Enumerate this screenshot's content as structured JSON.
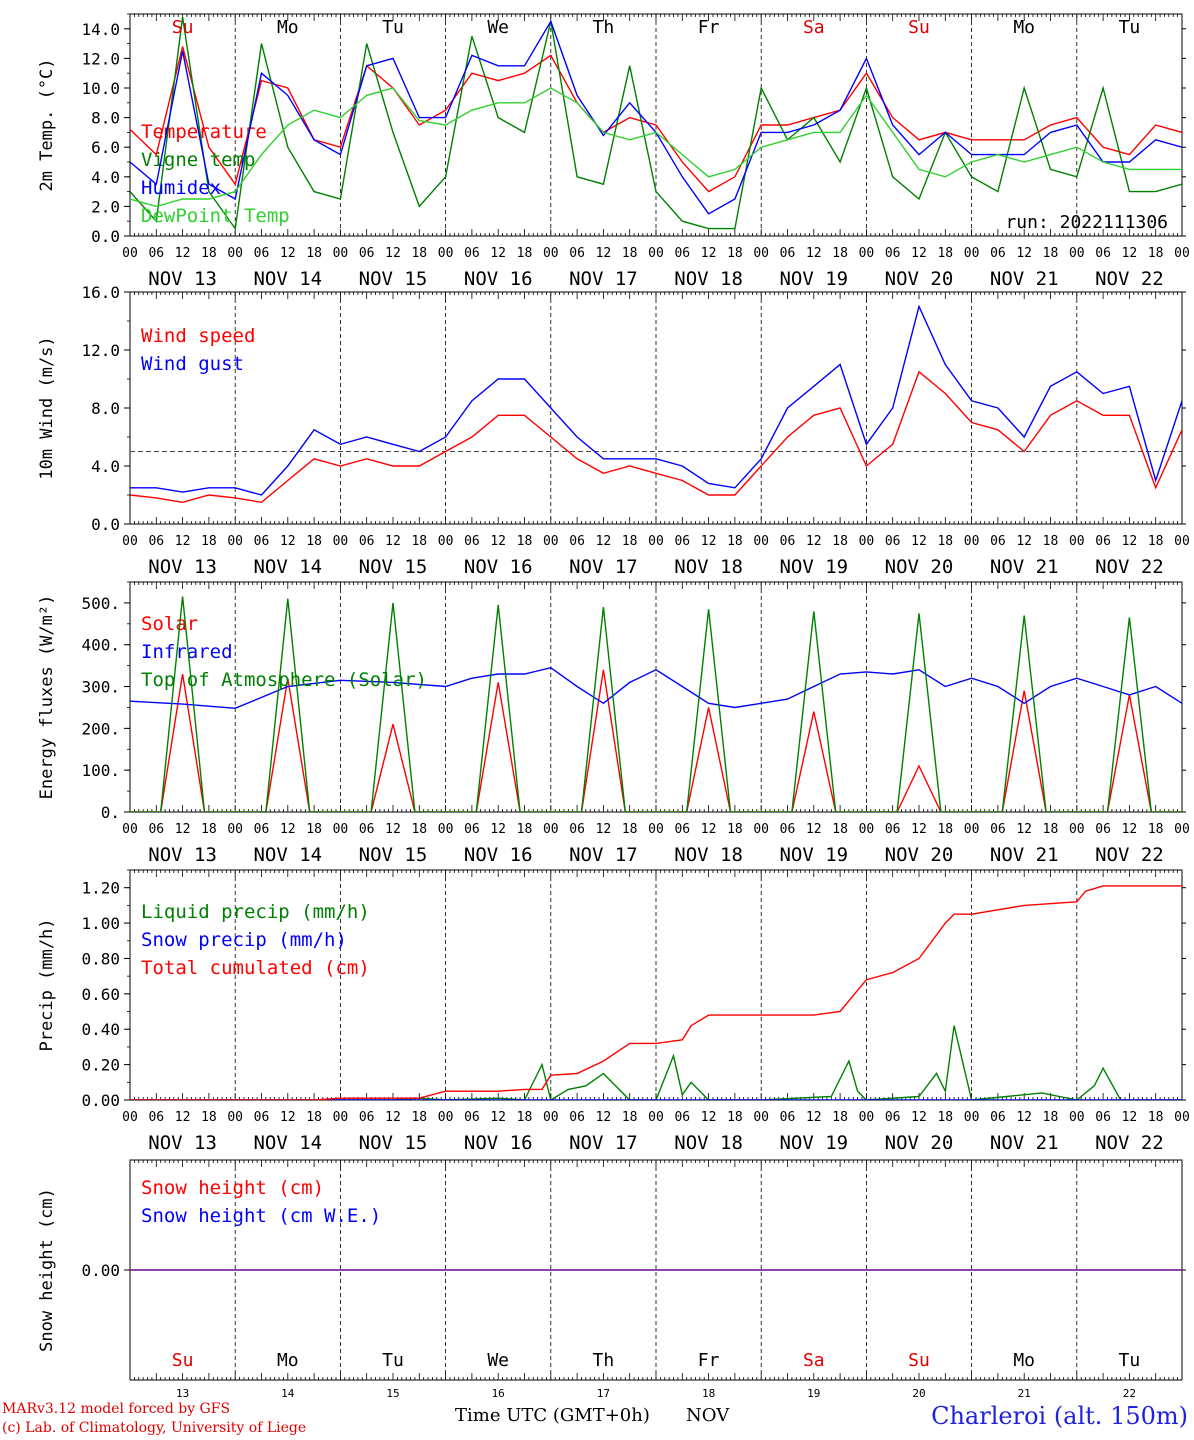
{
  "run_label": "run: 2022111306",
  "station": "Charleroi (alt. 150m)",
  "credits": [
    "MARv3.12 model forced by GFS",
    "(c) Lab. of Climatology, University of Liege"
  ],
  "x_title": "Time UTC (GMT+0h)",
  "x_unit": "NOV",
  "weekdays": [
    "Su",
    "Mo",
    "Tu",
    "We",
    "Th",
    "Fr",
    "Sa",
    "Su",
    "Mo",
    "Tu"
  ],
  "weekend_color": "#e00000",
  "date_labels": [
    "NOV 13",
    "NOV 14",
    "NOV 15",
    "NOV 16",
    "NOV 17",
    "NOV 18",
    "NOV 19",
    "NOV 20",
    "NOV 21",
    "NOV 22"
  ],
  "day_numbers": [
    "13",
    "14",
    "15",
    "16",
    "17",
    "18",
    "19",
    "20",
    "21",
    "22"
  ],
  "hour_ticks": [
    "00",
    "06",
    "12",
    "18"
  ],
  "chart_data": [
    {
      "type": "line",
      "ylabel": "2m Temp. (°C)",
      "x_unit": "hours since 2022-11-13 00 UTC",
      "ylim": [
        0,
        15
      ],
      "yticks": [
        "0.0",
        "2.0",
        "4.0",
        "6.0",
        "8.0",
        "10.0",
        "12.0",
        "14.0"
      ],
      "ytick_values": [
        0,
        2,
        4,
        6,
        8,
        10,
        12,
        14
      ],
      "series": [
        {
          "name": "Temperature",
          "color": "#ff0000",
          "x": [
            0,
            6,
            12,
            18,
            24,
            30,
            36,
            42,
            48,
            54,
            60,
            66,
            72,
            78,
            84,
            90,
            96,
            102,
            108,
            114,
            120,
            126,
            132,
            138,
            144,
            150,
            156,
            162,
            168,
            174,
            180,
            186,
            192,
            198,
            204,
            210,
            216,
            222,
            228,
            234,
            240
          ],
          "y": [
            7.2,
            5.5,
            12.8,
            6.0,
            3.5,
            10.5,
            10.0,
            6.5,
            6.0,
            11.5,
            10.0,
            7.5,
            8.5,
            11.0,
            10.5,
            11.0,
            12.2,
            9.0,
            7.0,
            8.0,
            7.5,
            5.0,
            3.0,
            4.0,
            7.5,
            7.5,
            8.0,
            8.5,
            11.0,
            8.0,
            6.5,
            7.0,
            6.5,
            6.5,
            6.5,
            7.5,
            8.0,
            6.0,
            5.5,
            7.5,
            7.0
          ]
        },
        {
          "name": "Vigne temp",
          "color": "#008000",
          "x": [
            0,
            6,
            12,
            18,
            24,
            30,
            36,
            42,
            48,
            54,
            60,
            66,
            72,
            78,
            84,
            90,
            96,
            102,
            108,
            114,
            120,
            126,
            132,
            138,
            144,
            150,
            156,
            162,
            168,
            174,
            180,
            186,
            192,
            198,
            204,
            210,
            216,
            222,
            228,
            234,
            240
          ],
          "y": [
            3.0,
            1.0,
            14.8,
            3.0,
            0.5,
            13.0,
            6.0,
            3.0,
            2.5,
            13.0,
            7.0,
            2.0,
            4.0,
            13.5,
            8.0,
            7.0,
            14.5,
            4.0,
            3.5,
            11.5,
            3.0,
            1.0,
            0.5,
            0.5,
            10.0,
            6.5,
            8.0,
            5.0,
            10.0,
            4.0,
            2.5,
            7.0,
            4.0,
            3.0,
            10.0,
            4.5,
            4.0,
            10.0,
            3.0,
            3.0,
            3.5
          ]
        },
        {
          "name": "Humidex",
          "color": "#0000ff",
          "x": [
            0,
            6,
            12,
            18,
            24,
            30,
            36,
            42,
            48,
            54,
            60,
            66,
            72,
            78,
            84,
            90,
            96,
            102,
            108,
            114,
            120,
            126,
            132,
            138,
            144,
            150,
            156,
            162,
            168,
            174,
            180,
            186,
            192,
            198,
            204,
            210,
            216,
            222,
            228,
            234,
            240
          ],
          "y": [
            5.0,
            3.5,
            12.5,
            3.5,
            2.5,
            11.0,
            9.5,
            6.5,
            5.5,
            11.5,
            12.0,
            8.0,
            8.0,
            12.2,
            11.5,
            11.5,
            14.5,
            9.5,
            6.8,
            9.0,
            7.0,
            4.0,
            1.5,
            2.5,
            7.0,
            7.0,
            7.5,
            8.5,
            12.0,
            7.5,
            5.5,
            7.0,
            5.5,
            5.5,
            5.5,
            7.0,
            7.5,
            5.0,
            5.0,
            6.5,
            6.0
          ]
        },
        {
          "name": "DewPoint Temp",
          "color": "#30d030",
          "x": [
            0,
            6,
            12,
            18,
            24,
            30,
            36,
            42,
            48,
            54,
            60,
            66,
            72,
            78,
            84,
            90,
            96,
            102,
            108,
            114,
            120,
            126,
            132,
            138,
            144,
            150,
            156,
            162,
            168,
            174,
            180,
            186,
            192,
            198,
            204,
            210,
            216,
            222,
            228,
            234,
            240
          ],
          "y": [
            2.5,
            2.0,
            2.5,
            2.5,
            3.0,
            5.5,
            7.5,
            8.5,
            8.0,
            9.5,
            10.0,
            7.8,
            7.5,
            8.5,
            9.0,
            9.0,
            10.0,
            9.0,
            7.0,
            6.5,
            7.0,
            5.5,
            4.0,
            4.5,
            6.0,
            6.5,
            7.0,
            7.0,
            9.5,
            7.0,
            4.5,
            4.0,
            5.0,
            5.5,
            5.0,
            5.5,
            6.0,
            5.0,
            4.5,
            4.5,
            4.5
          ]
        }
      ]
    },
    {
      "type": "line",
      "ylabel": "10m Wind (m/s)",
      "x_unit": "hours since 2022-11-13 00 UTC",
      "ylim": [
        0,
        16
      ],
      "yticks": [
        "0.0",
        "4.0",
        "8.0",
        "12.0",
        "16.0"
      ],
      "ytick_values": [
        0,
        4,
        8,
        12,
        16
      ],
      "reference_line": 5.0,
      "series": [
        {
          "name": "Wind speed",
          "color": "#ff0000",
          "x": [
            0,
            6,
            12,
            18,
            24,
            30,
            36,
            42,
            48,
            54,
            60,
            66,
            72,
            78,
            84,
            90,
            96,
            102,
            108,
            114,
            120,
            126,
            132,
            138,
            144,
            150,
            156,
            162,
            168,
            174,
            180,
            186,
            192,
            198,
            204,
            210,
            216,
            222,
            228,
            234,
            240
          ],
          "y": [
            2.0,
            1.8,
            1.5,
            2.0,
            1.8,
            1.5,
            3.0,
            4.5,
            4.0,
            4.5,
            4.0,
            4.0,
            5.0,
            6.0,
            7.5,
            7.5,
            6.0,
            4.5,
            3.5,
            4.0,
            3.5,
            3.0,
            2.0,
            2.0,
            4.0,
            6.0,
            7.5,
            8.0,
            4.0,
            5.5,
            10.5,
            9.0,
            7.0,
            6.5,
            5.0,
            7.5,
            8.5,
            7.5,
            7.5,
            2.5,
            6.5
          ]
        },
        {
          "name": "Wind gust",
          "color": "#0000ff",
          "x": [
            0,
            6,
            12,
            18,
            24,
            30,
            36,
            42,
            48,
            54,
            60,
            66,
            72,
            78,
            84,
            90,
            96,
            102,
            108,
            114,
            120,
            126,
            132,
            138,
            144,
            150,
            156,
            162,
            168,
            174,
            180,
            186,
            192,
            198,
            204,
            210,
            216,
            222,
            228,
            234,
            240
          ],
          "y": [
            2.5,
            2.5,
            2.2,
            2.5,
            2.5,
            2.0,
            4.0,
            6.5,
            5.5,
            6.0,
            5.5,
            5.0,
            6.0,
            8.5,
            10.0,
            10.0,
            8.0,
            6.0,
            4.5,
            4.5,
            4.5,
            4.0,
            2.8,
            2.5,
            4.5,
            8.0,
            9.5,
            11.0,
            5.5,
            8.0,
            15.0,
            11.0,
            8.5,
            8.0,
            6.0,
            9.5,
            10.5,
            9.0,
            9.5,
            3.0,
            8.5
          ]
        }
      ]
    },
    {
      "type": "line",
      "ylabel": "Energy fluxes (W/m²)",
      "x_unit": "hours since 2022-11-13 00 UTC",
      "ylim": [
        0,
        550
      ],
      "yticks": [
        "0.",
        "100.",
        "200.",
        "300.",
        "400.",
        "500."
      ],
      "ytick_values": [
        0,
        100,
        200,
        300,
        400,
        500
      ],
      "series": [
        {
          "name": "Solar",
          "color": "#ff0000",
          "x": [
            0,
            7,
            12,
            17,
            24,
            31,
            36,
            41,
            48,
            55,
            60,
            65,
            72,
            79,
            84,
            89,
            96,
            103,
            108,
            113,
            120,
            127,
            132,
            137,
            144,
            151,
            156,
            161,
            168,
            175,
            180,
            185,
            192,
            199,
            204,
            209,
            216,
            223,
            228,
            233,
            240
          ],
          "y": [
            0,
            0,
            330,
            0,
            0,
            0,
            320,
            0,
            0,
            0,
            210,
            0,
            0,
            0,
            310,
            0,
            0,
            0,
            340,
            0,
            0,
            0,
            250,
            0,
            0,
            0,
            240,
            0,
            0,
            0,
            110,
            0,
            0,
            0,
            290,
            0,
            0,
            0,
            280,
            0,
            0
          ]
        },
        {
          "name": "Infrared",
          "color": "#0000ff",
          "x": [
            0,
            12,
            24,
            36,
            48,
            60,
            72,
            78,
            84,
            90,
            96,
            102,
            108,
            114,
            120,
            126,
            132,
            138,
            144,
            150,
            156,
            162,
            168,
            174,
            180,
            186,
            192,
            198,
            204,
            210,
            216,
            222,
            228,
            234,
            240
          ],
          "y": [
            265,
            258,
            248,
            300,
            315,
            310,
            300,
            320,
            330,
            330,
            345,
            300,
            260,
            310,
            340,
            300,
            260,
            250,
            260,
            270,
            300,
            330,
            335,
            330,
            340,
            300,
            320,
            300,
            260,
            300,
            320,
            300,
            280,
            300,
            260
          ]
        },
        {
          "name": "Top of Atmosphere (Solar)",
          "color": "#008000",
          "x": [
            0,
            7,
            12,
            17,
            24,
            31,
            36,
            41,
            48,
            55,
            60,
            65,
            72,
            79,
            84,
            89,
            96,
            103,
            108,
            113,
            120,
            127,
            132,
            137,
            144,
            151,
            156,
            161,
            168,
            175,
            180,
            185,
            192,
            199,
            204,
            209,
            216,
            223,
            228,
            233,
            240
          ],
          "y": [
            0,
            0,
            515,
            0,
            0,
            0,
            510,
            0,
            0,
            0,
            500,
            0,
            0,
            0,
            495,
            0,
            0,
            0,
            490,
            0,
            0,
            0,
            485,
            0,
            0,
            0,
            480,
            0,
            0,
            0,
            475,
            0,
            0,
            0,
            470,
            0,
            0,
            0,
            465,
            0,
            0
          ]
        }
      ]
    },
    {
      "type": "line",
      "ylabel": "Precip (mm/h)",
      "x_unit": "hours since 2022-11-13 00 UTC",
      "ylim": [
        0,
        1.3
      ],
      "yticks": [
        "0.00",
        "0.20",
        "0.40",
        "0.60",
        "0.80",
        "1.00",
        "1.20"
      ],
      "ytick_values": [
        0,
        0.2,
        0.4,
        0.6,
        0.8,
        1.0,
        1.2
      ],
      "series": [
        {
          "name": "Liquid precip (mm/h)",
          "color": "#008000",
          "x": [
            0,
            48,
            60,
            66,
            72,
            84,
            90,
            94,
            96,
            100,
            104,
            108,
            114,
            120,
            124,
            126,
            128,
            132,
            144,
            160,
            164,
            166,
            168,
            180,
            184,
            186,
            188,
            192,
            200,
            208,
            216,
            220,
            222,
            226,
            240
          ],
          "y": [
            0,
            0,
            0,
            0.01,
            0,
            0.01,
            0,
            0.2,
            0,
            0.06,
            0.08,
            0.15,
            0,
            0,
            0.25,
            0.03,
            0.1,
            0,
            0,
            0.02,
            0.22,
            0.05,
            0,
            0.02,
            0.15,
            0.05,
            0.42,
            0,
            0.02,
            0.04,
            0,
            0.08,
            0.18,
            0,
            0
          ]
        },
        {
          "name": "Snow precip (mm/h)",
          "color": "#0000ff",
          "x": [
            0,
            240
          ],
          "y": [
            0,
            0
          ]
        },
        {
          "name": "Total cumulated (cm)",
          "color": "#ff0000",
          "x": [
            0,
            42,
            48,
            66,
            72,
            84,
            90,
            94,
            96,
            102,
            108,
            114,
            120,
            126,
            128,
            132,
            144,
            156,
            162,
            168,
            174,
            180,
            186,
            188,
            192,
            204,
            216,
            218,
            222,
            240
          ],
          "y": [
            0,
            0,
            0.01,
            0.01,
            0.05,
            0.05,
            0.06,
            0.06,
            0.14,
            0.15,
            0.22,
            0.32,
            0.32,
            0.34,
            0.42,
            0.48,
            0.48,
            0.48,
            0.5,
            0.68,
            0.72,
            0.8,
            1.0,
            1.05,
            1.05,
            1.1,
            1.12,
            1.18,
            1.21,
            1.21
          ]
        }
      ]
    },
    {
      "type": "line",
      "ylabel": "Snow height (cm)",
      "x_unit": "hours since 2022-11-13 00 UTC",
      "ylim": [
        -1,
        1
      ],
      "yticks": [
        "0.00"
      ],
      "ytick_values": [
        0
      ],
      "series": [
        {
          "name": "Snow height (cm)",
          "color": "#ff0000",
          "x": [
            0,
            240
          ],
          "y": [
            0,
            0
          ]
        },
        {
          "name": "Snow height (cm W.E.)",
          "color": "#0000ff",
          "x": [
            0,
            240
          ],
          "y": [
            0,
            0
          ]
        }
      ]
    }
  ]
}
